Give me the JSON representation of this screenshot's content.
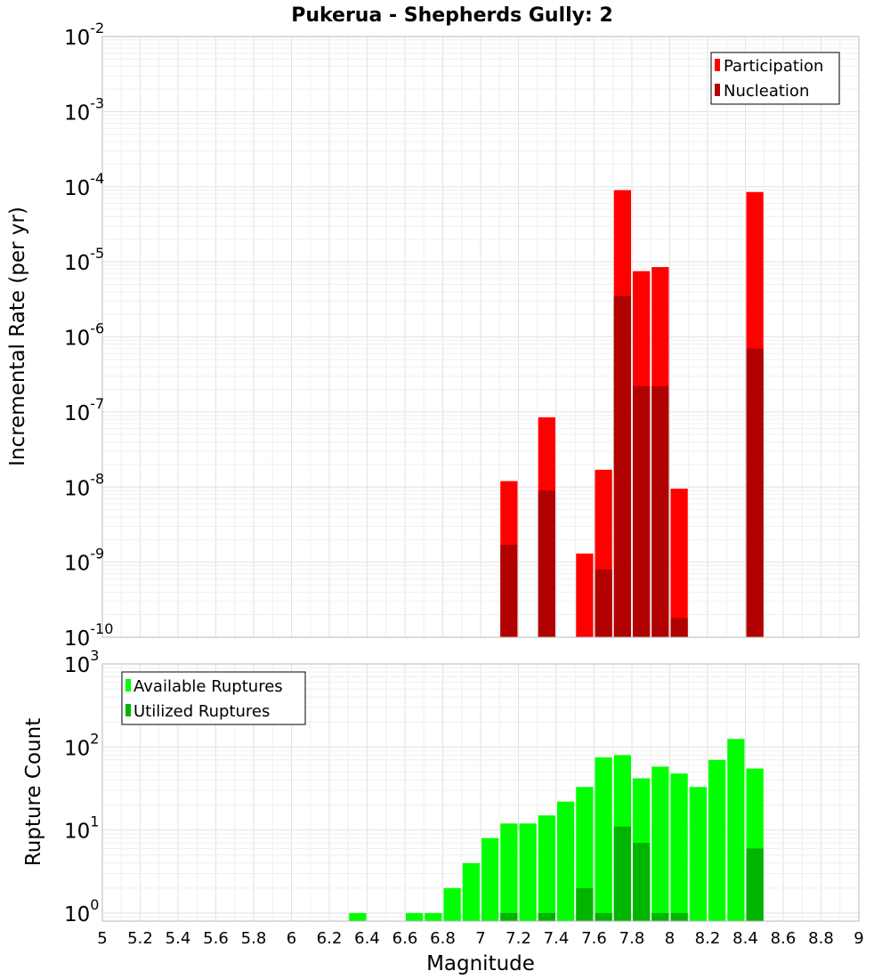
{
  "chart_data": [
    {
      "type": "bar",
      "title": "Pukerua - Shepherds Gully: 2",
      "xlabel": "Magnitude",
      "ylabel": "Incremental Rate (per yr)",
      "yscale": "log",
      "ylim": [
        1e-10,
        0.01
      ],
      "xlim": [
        5,
        9
      ],
      "bar_width": 0.1,
      "legend": {
        "position": "top-right"
      },
      "x": [
        7.15,
        7.35,
        7.55,
        7.65,
        7.75,
        7.85,
        7.95,
        8.05,
        8.45
      ],
      "series": [
        {
          "name": "Participation",
          "color": "#ff0000",
          "values": [
            1.2e-08,
            8.5e-08,
            1.3e-09,
            1.7e-08,
            9e-05,
            7.5e-06,
            8.5e-06,
            9.5e-09,
            8.5e-05
          ]
        },
        {
          "name": "Nucleation",
          "color": "#b00000",
          "values": [
            1.7e-09,
            9e-09,
            null,
            8e-10,
            3.5e-06,
            2.2e-07,
            2.2e-07,
            1.8e-10,
            7e-07
          ]
        }
      ],
      "y_ticks": [
        {
          "base": "10",
          "exp": "-10",
          "value": 1e-10
        },
        {
          "base": "10",
          "exp": "-9",
          "value": 1e-09
        },
        {
          "base": "10",
          "exp": "-8",
          "value": 1e-08
        },
        {
          "base": "10",
          "exp": "-7",
          "value": 1e-07
        },
        {
          "base": "10",
          "exp": "-6",
          "value": 1e-06
        },
        {
          "base": "10",
          "exp": "-5",
          "value": 1e-05
        },
        {
          "base": "10",
          "exp": "-4",
          "value": 0.0001
        },
        {
          "base": "10",
          "exp": "-3",
          "value": 0.001
        },
        {
          "base": "10",
          "exp": "-2",
          "value": 0.01
        }
      ]
    },
    {
      "type": "bar",
      "xlabel": "Magnitude",
      "ylabel": "Rupture Count",
      "yscale": "log",
      "ylim": [
        0.8,
        1000
      ],
      "xlim": [
        5,
        9
      ],
      "bar_width": 0.1,
      "legend": {
        "position": "top-left"
      },
      "x": [
        6.35,
        6.65,
        6.75,
        6.85,
        6.95,
        7.05,
        7.15,
        7.25,
        7.35,
        7.45,
        7.55,
        7.65,
        7.75,
        7.85,
        7.95,
        8.05,
        8.15,
        8.25,
        8.35,
        8.45
      ],
      "series": [
        {
          "name": "Available Ruptures",
          "color": "#00ff00",
          "values": [
            1,
            1,
            1,
            2,
            4,
            8,
            12,
            12,
            15,
            22,
            33,
            75,
            80,
            42,
            58,
            48,
            33,
            70,
            125,
            55
          ]
        },
        {
          "name": "Utilized Ruptures",
          "color": "#00b400",
          "values": [
            null,
            null,
            null,
            null,
            null,
            null,
            1,
            null,
            1,
            null,
            2,
            1,
            11,
            7,
            1,
            1,
            null,
            null,
            null,
            6
          ]
        }
      ],
      "y_ticks": [
        {
          "base": "10",
          "exp": "0",
          "value": 1
        },
        {
          "base": "10",
          "exp": "1",
          "value": 10
        },
        {
          "base": "10",
          "exp": "2",
          "value": 100
        },
        {
          "base": "10",
          "exp": "3",
          "value": 1000
        }
      ],
      "x_ticks": [
        "5",
        "5.2",
        "5.4",
        "5.6",
        "5.8",
        "6",
        "6.2",
        "6.4",
        "6.6",
        "6.8",
        "7",
        "7.2",
        "7.4",
        "7.6",
        "7.8",
        "8",
        "8.2",
        "8.4",
        "8.6",
        "8.8",
        "9"
      ]
    }
  ]
}
